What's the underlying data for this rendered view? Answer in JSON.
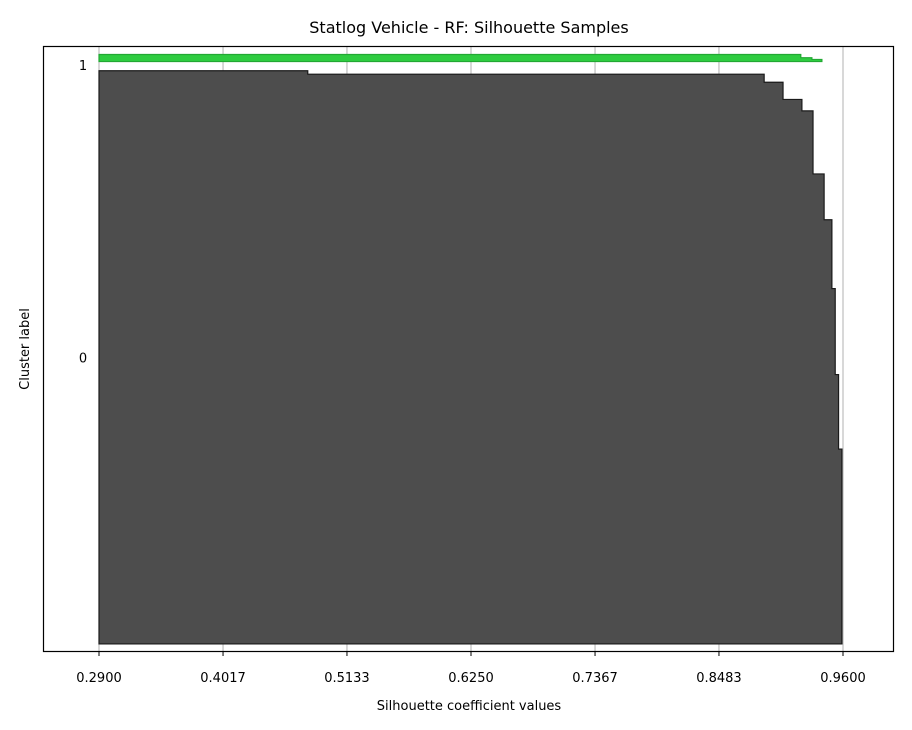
{
  "chart_data": {
    "type": "area",
    "title": "Statlog Vehicle - RF: Silhouette Samples",
    "xlabel": "Silhouette coefficient values",
    "ylabel": "Cluster label",
    "xlim": [
      0.29,
      0.96
    ],
    "xticks": [
      "0.2900",
      "0.4017",
      "0.5133",
      "0.6250",
      "0.7367",
      "0.8483",
      "0.9600"
    ],
    "yticks": [
      "0",
      "1"
    ],
    "grid": "x-axis vertical gridlines",
    "series": [
      {
        "name": "0",
        "color": "#4d4d4d",
        "edge_color": "#1a1a1a",
        "sample_range": [
          0,
          810
        ],
        "profile": [
          {
            "t": 0.0,
            "v": 0.959
          },
          {
            "t": 0.12,
            "v": 0.959
          },
          {
            "t": 0.34,
            "v": 0.956
          },
          {
            "t": 0.47,
            "v": 0.953
          },
          {
            "t": 0.62,
            "v": 0.95
          },
          {
            "t": 0.74,
            "v": 0.943
          },
          {
            "t": 0.82,
            "v": 0.933
          },
          {
            "t": 0.93,
            "v": 0.923
          },
          {
            "t": 0.95,
            "v": 0.906
          },
          {
            "t": 0.98,
            "v": 0.889
          },
          {
            "t": 0.994,
            "v": 0.478
          },
          {
            "t": 1.0,
            "v": 0.292
          }
        ]
      },
      {
        "name": "1",
        "color": "#2ecc40",
        "edge_color": "#22a833",
        "sample_range": [
          823,
          833
        ],
        "profile": [
          {
            "t": 0.0,
            "v": 0.941
          },
          {
            "t": 0.3,
            "v": 0.932
          },
          {
            "t": 0.55,
            "v": 0.922
          },
          {
            "t": 1.0,
            "v": 0.922
          }
        ]
      }
    ],
    "cluster_label_positions": [
      {
        "label": "0",
        "y": 405
      },
      {
        "label": "1",
        "y": 818
      }
    ],
    "ylim": [
      -10,
      845
    ]
  }
}
